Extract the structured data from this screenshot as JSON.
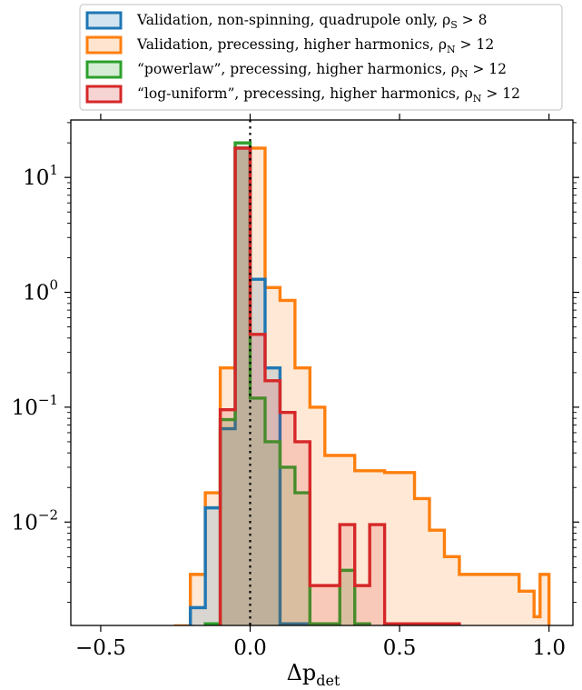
{
  "chart_data": {
    "type": "histogram",
    "xlabel_main": "Δp",
    "xlabel_sub": "det",
    "ylabel": "",
    "xlim": [
      -0.6,
      1.08
    ],
    "ylim_log10": [
      -2.9,
      1.5
    ],
    "y_scale": "log",
    "grid": false,
    "legend_position": "top, above plot",
    "x_ticks": [
      {
        "value": -0.5,
        "label": "−0.5"
      },
      {
        "value": 0.0,
        "label": "0.0"
      },
      {
        "value": 0.5,
        "label": "0.5"
      },
      {
        "value": 1.0,
        "label": "1.0"
      }
    ],
    "y_ticks": [
      {
        "exp": 1,
        "base": "10",
        "sup": "1"
      },
      {
        "exp": 0,
        "base": "10",
        "sup": "0"
      },
      {
        "exp": -1,
        "base": "10",
        "sup": "−1"
      },
      {
        "exp": -2,
        "base": "10",
        "sup": "−2"
      }
    ],
    "vertical_reference_line": {
      "x": 0.0,
      "style": "dotted",
      "color": "#000000"
    },
    "series": [
      {
        "name": "Validation, precessing, higher harmonics, ρ",
        "name_sub": "N",
        "name_suffix": " > 12",
        "color": "#ff7f0e",
        "steps": [
          [
            -0.25,
            0.00125
          ],
          [
            -0.2,
            0.0035
          ],
          [
            -0.15,
            0.018
          ],
          [
            -0.1,
            0.22
          ],
          [
            -0.05,
            18
          ],
          [
            0.0,
            18
          ],
          [
            0.05,
            1.1
          ],
          [
            0.1,
            0.85
          ],
          [
            0.15,
            0.22
          ],
          [
            0.2,
            0.1
          ],
          [
            0.25,
            0.038
          ],
          [
            0.3,
            0.038
          ],
          [
            0.35,
            0.028
          ],
          [
            0.4,
            0.028
          ],
          [
            0.45,
            0.027
          ],
          [
            0.5,
            0.027
          ],
          [
            0.55,
            0.016
          ],
          [
            0.6,
            0.0085
          ],
          [
            0.65,
            0.005
          ],
          [
            0.7,
            0.0035
          ],
          [
            0.75,
            0.0035
          ],
          [
            0.8,
            0.0035
          ],
          [
            0.85,
            0.0035
          ],
          [
            0.9,
            0.0025
          ],
          [
            0.95,
            0.0015
          ],
          [
            0.97,
            0.0035
          ],
          [
            1.0,
            0.0035
          ]
        ],
        "end_x": 1.0
      },
      {
        "name": "Validation, non-spinning, quadrupole only, ρ",
        "name_sub": "S",
        "name_suffix": " > 8",
        "color": "#1f77b4",
        "steps": [
          [
            -0.2,
            0.0018
          ],
          [
            -0.15,
            0.0133
          ],
          [
            -0.1,
            0.065
          ],
          [
            -0.05,
            18
          ],
          [
            0.0,
            1.3
          ],
          [
            0.05,
            0.22
          ],
          [
            0.1,
            0.0013
          ]
        ],
        "end_x": 0.2
      },
      {
        "name": "“powerlaw”, precessing, higher harmonics, ρ",
        "name_sub": "N",
        "name_suffix": " > 12",
        "color": "#2ca02c",
        "steps": [
          [
            -0.15,
            0.0013
          ],
          [
            -0.1,
            0.078
          ],
          [
            -0.05,
            20
          ],
          [
            0.0,
            0.12
          ],
          [
            0.05,
            0.05
          ],
          [
            0.1,
            0.03
          ],
          [
            0.15,
            0.018
          ],
          [
            0.2,
            0.0013
          ],
          [
            0.3,
            0.0038
          ],
          [
            0.35,
            0.0013
          ]
        ],
        "end_x": 0.4
      },
      {
        "name": "“log-uniform”, precessing, higher harmonics, ρ",
        "name_sub": "N",
        "name_suffix": " > 12",
        "color": "#d62728",
        "steps": [
          [
            -0.1,
            0.095
          ],
          [
            -0.05,
            18
          ],
          [
            0.0,
            0.43
          ],
          [
            0.05,
            0.17
          ],
          [
            0.1,
            0.09
          ],
          [
            0.15,
            0.05
          ],
          [
            0.2,
            0.0028
          ],
          [
            0.3,
            0.0095
          ],
          [
            0.35,
            0.0028
          ],
          [
            0.4,
            0.0095
          ],
          [
            0.45,
            0.0013
          ],
          [
            0.5,
            0.0013
          ],
          [
            0.55,
            0.0013
          ]
        ],
        "end_x": 0.7
      }
    ],
    "legend_order": [
      1,
      0,
      2,
      3
    ]
  }
}
